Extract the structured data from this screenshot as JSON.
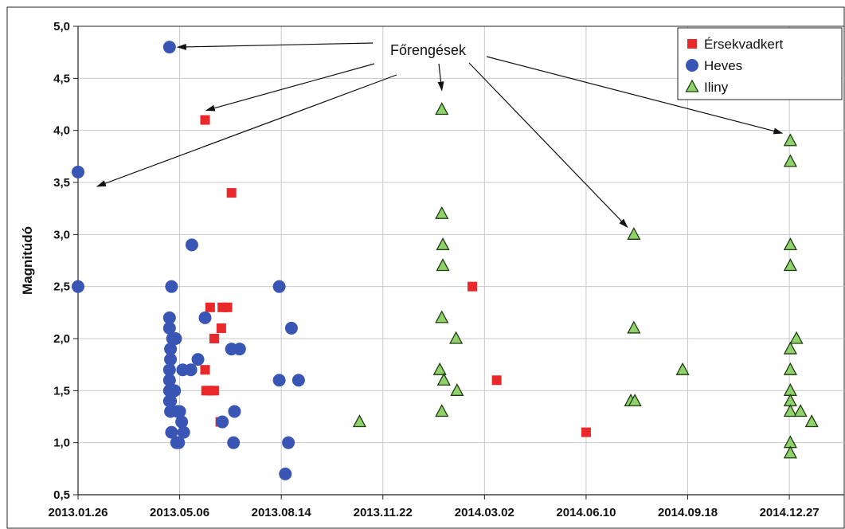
{
  "chart_data": {
    "type": "scatter",
    "xlabel": "",
    "ylabel": "Magnitúdó",
    "xlim": [
      "2013-01-26",
      "2015-02-19"
    ],
    "ylim": [
      0.5,
      5.0
    ],
    "x_ticks": [
      "2013.01.26",
      "2013.05.06",
      "2013.08.14",
      "2013.11.22",
      "2014.03.02",
      "2014.06.10",
      "2014.09.18",
      "2014.12.27"
    ],
    "y_ticks": [
      "0,5",
      "1,0",
      "1,5",
      "2,0",
      "2,5",
      "3,0",
      "3,5",
      "4,0",
      "4,5",
      "5,0"
    ],
    "grid": true,
    "legend_position": "top-right",
    "series": [
      {
        "name": "Érsekvadkert",
        "marker": "square",
        "color": "#e8282b",
        "points": [
          [
            "2013-05-31",
            4.1
          ],
          [
            "2013-06-26",
            3.4
          ],
          [
            "2013-06-05",
            2.3
          ],
          [
            "2013-06-17",
            2.3
          ],
          [
            "2013-06-22",
            2.3
          ],
          [
            "2013-06-16",
            2.1
          ],
          [
            "2013-06-09",
            2.0
          ],
          [
            "2013-05-31",
            1.7
          ],
          [
            "2013-06-01",
            1.5
          ],
          [
            "2013-06-05",
            1.5
          ],
          [
            "2013-06-09",
            1.5
          ],
          [
            "2013-06-15",
            1.2
          ],
          [
            "2014-02-18",
            2.5
          ],
          [
            "2014-03-14",
            1.6
          ],
          [
            "2014-06-10",
            1.1
          ]
        ]
      },
      {
        "name": "Heves",
        "marker": "circle",
        "color": "#3a56b4",
        "points": [
          [
            "2013-04-26",
            4.8
          ],
          [
            "2013-01-26",
            3.6
          ],
          [
            "2013-01-26",
            2.5
          ],
          [
            "2013-04-28",
            2.5
          ],
          [
            "2013-05-18",
            2.9
          ],
          [
            "2013-04-26",
            2.2
          ],
          [
            "2013-04-26",
            2.1
          ],
          [
            "2013-04-29",
            2.0
          ],
          [
            "2013-05-02",
            2.0
          ],
          [
            "2013-04-27",
            1.9
          ],
          [
            "2013-04-27",
            1.8
          ],
          [
            "2013-04-26",
            1.7
          ],
          [
            "2013-04-26",
            1.6
          ],
          [
            "2013-04-26",
            1.5
          ],
          [
            "2013-04-28",
            1.5
          ],
          [
            "2013-05-01",
            1.5
          ],
          [
            "2013-04-26",
            1.4
          ],
          [
            "2013-04-27",
            1.4
          ],
          [
            "2013-04-27",
            1.3
          ],
          [
            "2013-05-04",
            1.3
          ],
          [
            "2013-05-06",
            1.3
          ],
          [
            "2013-05-08",
            1.2
          ],
          [
            "2013-05-10",
            1.1
          ],
          [
            "2013-04-28",
            1.1
          ],
          [
            "2013-05-03",
            1.0
          ],
          [
            "2013-05-05",
            1.0
          ],
          [
            "2013-05-09",
            1.7
          ],
          [
            "2013-05-17",
            1.7
          ],
          [
            "2013-05-24",
            1.8
          ],
          [
            "2013-05-31",
            2.2
          ],
          [
            "2013-06-26",
            1.9
          ],
          [
            "2013-07-04",
            1.9
          ],
          [
            "2013-06-29",
            1.3
          ],
          [
            "2013-06-17",
            1.2
          ],
          [
            "2013-06-28",
            1.0
          ],
          [
            "2013-08-12",
            2.5
          ],
          [
            "2013-08-12",
            1.6
          ],
          [
            "2013-08-24",
            2.1
          ],
          [
            "2013-08-31",
            1.6
          ],
          [
            "2013-08-21",
            1.0
          ],
          [
            "2013-08-18",
            0.7
          ]
        ]
      },
      {
        "name": "Iliny",
        "marker": "triangle",
        "color": "#8fd16b",
        "points": [
          [
            "2013-10-30",
            1.2
          ],
          [
            "2014-01-19",
            4.2
          ],
          [
            "2014-01-19",
            3.2
          ],
          [
            "2014-01-20",
            2.9
          ],
          [
            "2014-01-20",
            2.7
          ],
          [
            "2014-01-19",
            2.2
          ],
          [
            "2014-02-02",
            2.0
          ],
          [
            "2014-01-17",
            1.7
          ],
          [
            "2014-01-21",
            1.6
          ],
          [
            "2014-02-03",
            1.5
          ],
          [
            "2014-01-19",
            1.3
          ],
          [
            "2014-07-27",
            3.0
          ],
          [
            "2014-07-27",
            2.1
          ],
          [
            "2014-07-24",
            1.4
          ],
          [
            "2014-07-28",
            1.4
          ],
          [
            "2014-09-13",
            1.7
          ],
          [
            "2014-12-28",
            3.9
          ],
          [
            "2014-12-28",
            3.7
          ],
          [
            "2014-12-28",
            2.9
          ],
          [
            "2014-12-28",
            2.7
          ],
          [
            "2015-01-03",
            2.0
          ],
          [
            "2014-12-28",
            1.9
          ],
          [
            "2014-12-28",
            1.7
          ],
          [
            "2014-12-28",
            1.5
          ],
          [
            "2014-12-28",
            1.4
          ],
          [
            "2014-12-28",
            1.3
          ],
          [
            "2015-01-07",
            1.3
          ],
          [
            "2015-01-18",
            1.2
          ],
          [
            "2014-12-28",
            1.0
          ],
          [
            "2014-12-28",
            0.9
          ]
        ]
      }
    ],
    "annotation": {
      "text": "Főrengések",
      "arrow_targets": [
        [
          "2013-04-26",
          4.8
        ],
        [
          "2013-06-01",
          4.1
        ],
        [
          "2013-02-20",
          3.5
        ],
        [
          "2014-01-19",
          4.2
        ],
        [
          "2014-07-27",
          3.0
        ],
        [
          "2014-12-28",
          3.95
        ]
      ]
    }
  }
}
